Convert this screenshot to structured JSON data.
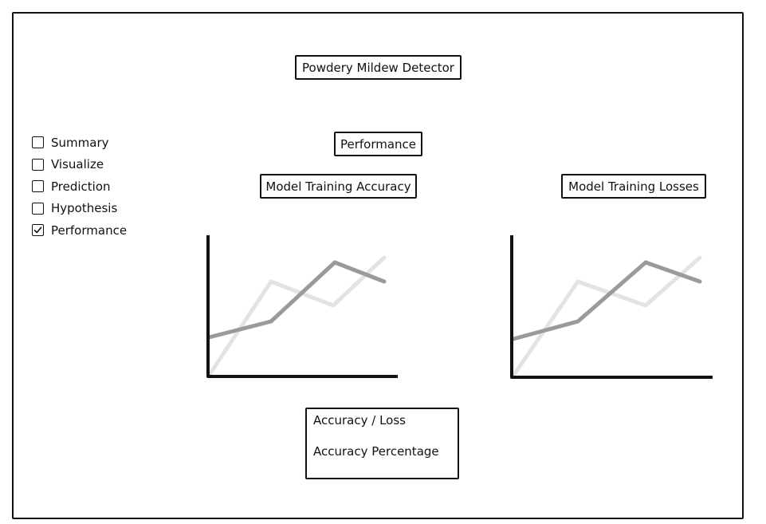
{
  "app": {
    "title": "Powdery Mildew Detector"
  },
  "sidebar": {
    "items": [
      {
        "label": "Summary",
        "checked": false
      },
      {
        "label": "Visualize",
        "checked": false
      },
      {
        "label": "Prediction",
        "checked": false
      },
      {
        "label": "Hypothesis",
        "checked": false
      },
      {
        "label": "Performance",
        "checked": true
      }
    ]
  },
  "main": {
    "page_heading": "Performance",
    "charts": [
      {
        "title": "Model Training Accuracy",
        "icon": "line-chart-placeholder-icon"
      },
      {
        "title": "Model Training Losses",
        "icon": "line-chart-placeholder-icon"
      }
    ],
    "results_box": {
      "line1": "Accuracy / Loss",
      "line2": "Accuracy Percentage"
    }
  },
  "colors": {
    "ink": "#111111",
    "series_dark": "#9a9a9a",
    "series_light": "#e3e3e3"
  }
}
